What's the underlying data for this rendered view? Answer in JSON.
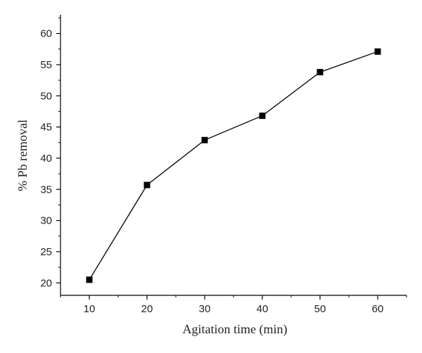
{
  "chart_data": {
    "type": "line",
    "title": "",
    "xlabel": "Agitation time (min)",
    "ylabel": "% Pb removal",
    "x": [
      10,
      20,
      30,
      40,
      50,
      60
    ],
    "series": [
      {
        "values": [
          20.5,
          35.7,
          42.9,
          46.8,
          53.8,
          57.1
        ]
      }
    ],
    "xlim": [
      5,
      65
    ],
    "ylim": [
      18,
      63
    ],
    "xticks": [
      10,
      20,
      30,
      40,
      50,
      60
    ],
    "yticks": [
      20,
      25,
      30,
      35,
      40,
      45,
      50,
      55,
      60
    ],
    "marker": "square",
    "grid": false,
    "colors": {
      "line": "#000000",
      "marker": "#000000",
      "axis": "#000000"
    }
  }
}
